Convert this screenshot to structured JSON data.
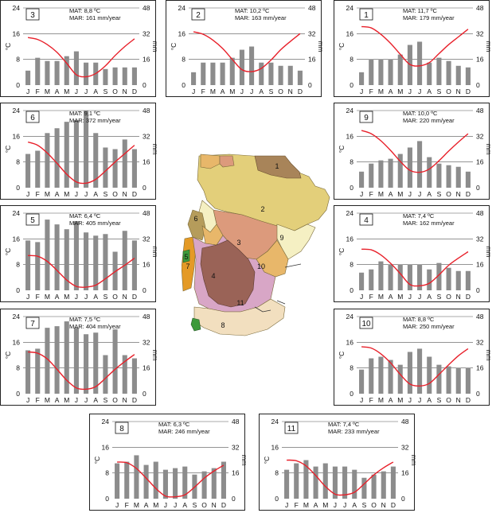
{
  "units": {
    "temp_axis": "°C",
    "precip_axis": "mm"
  },
  "month_labels": [
    "J",
    "F",
    "M",
    "A",
    "M",
    "J",
    "J",
    "A",
    "S",
    "O",
    "N",
    "D"
  ],
  "axes": {
    "temp_ticks": [
      "0",
      "8",
      "16",
      "24"
    ],
    "precip_ticks": [
      "0",
      "16",
      "32",
      "48"
    ]
  },
  "colors": {
    "bar": "#8c8c8c",
    "line": "#e8202a",
    "grid": "#000000",
    "stream": "#3a3a3a"
  },
  "chart_data": [
    {
      "type": "bar+line",
      "id": "3",
      "mat": "MAT: 8,8 ºC",
      "mar": "MAR: 161 mm/year",
      "temp_c": [
        14.8,
        14.2,
        12.6,
        10.2,
        6.8,
        3.2,
        2.6,
        3.6,
        6.0,
        9.2,
        12.0,
        14.4
      ],
      "precip_mm": [
        9,
        17,
        15,
        15,
        18,
        21,
        14,
        14,
        10,
        11,
        11,
        11
      ],
      "temp_ylim": [
        0,
        24
      ],
      "precip_ylim": [
        0,
        48
      ]
    },
    {
      "type": "bar+line",
      "id": "2",
      "mat": "MAT: 10,2 ºC",
      "mar": "MAR: 163 mm/year",
      "temp_c": [
        16.6,
        15.8,
        14.0,
        11.4,
        8.0,
        4.8,
        4.2,
        5.2,
        7.8,
        11.0,
        13.6,
        16.0
      ],
      "precip_mm": [
        8,
        14,
        14,
        14,
        17,
        22,
        24,
        14,
        14,
        12,
        12,
        9
      ],
      "temp_ylim": [
        0,
        24
      ],
      "precip_ylim": [
        0,
        48
      ]
    },
    {
      "type": "bar+line",
      "id": "1",
      "mat": "MAT: 11,7 ºC",
      "mar": "MAR: 179 mm/year",
      "temp_c": [
        18.2,
        17.8,
        15.8,
        13.0,
        9.6,
        6.4,
        6.0,
        7.0,
        9.8,
        12.6,
        15.0,
        17.4
      ],
      "precip_mm": [
        8,
        16,
        16,
        16,
        19,
        25,
        27,
        14,
        17,
        15,
        12,
        11
      ],
      "temp_ylim": [
        0,
        24
      ],
      "precip_ylim": [
        0,
        48
      ]
    },
    {
      "type": "bar+line",
      "id": "6",
      "mat": "MAT: 9,1 ºC",
      "mar": "MAR: 372 mm/year",
      "temp_c": [
        14.2,
        13.2,
        10.8,
        7.6,
        4.2,
        1.8,
        1.4,
        2.6,
        5.2,
        8.0,
        10.6,
        13.2
      ],
      "precip_mm": [
        21,
        23,
        34,
        37,
        41,
        42,
        48,
        34,
        25,
        24,
        30,
        24
      ],
      "temp_ylim": [
        0,
        24
      ],
      "precip_ylim": [
        0,
        48
      ]
    },
    {
      "type": "bar+line",
      "id": "9",
      "mat": "MAT: 10,0 ºC",
      "mar": "MAR: 220 mm/year",
      "temp_c": [
        17.8,
        16.8,
        14.6,
        11.6,
        8.2,
        5.4,
        4.8,
        5.8,
        8.4,
        11.4,
        14.2,
        16.8
      ],
      "precip_mm": [
        10,
        15,
        17,
        18,
        21,
        25,
        29,
        19,
        15,
        14,
        13,
        10
      ],
      "temp_ylim": [
        0,
        24
      ],
      "precip_ylim": [
        0,
        48
      ]
    },
    {
      "type": "bar+line",
      "id": "5",
      "mat": "MAT: 6,4 ºC",
      "mar": "MAR: 405 mm/year",
      "temp_c": [
        10.8,
        10.6,
        9.0,
        6.2,
        3.2,
        1.2,
        1.0,
        1.6,
        3.6,
        5.8,
        7.8,
        10.0
      ],
      "precip_mm": [
        31,
        30,
        44,
        41,
        38,
        43,
        36,
        34,
        35,
        24,
        37,
        31
      ],
      "temp_ylim": [
        0,
        24
      ],
      "precip_ylim": [
        0,
        48
      ]
    },
    {
      "type": "bar+line",
      "id": "4",
      "mat": "MAT: 7,4 ºC",
      "mar": "MAR: 162 mm/year",
      "temp_c": [
        12.8,
        12.6,
        11.0,
        8.4,
        5.2,
        1.8,
        1.4,
        2.2,
        4.8,
        7.8,
        10.0,
        12.0
      ],
      "precip_mm": [
        11,
        13,
        18,
        16,
        16,
        16,
        16,
        13,
        17,
        14,
        12,
        12
      ],
      "temp_ylim": [
        0,
        24
      ],
      "precip_ylim": [
        0,
        48
      ]
    },
    {
      "type": "bar+line",
      "id": "7",
      "mat": "MAT: 7,5 ºC",
      "mar": "MAR: 404 mm/year",
      "temp_c": [
        13.0,
        12.6,
        10.8,
        7.6,
        4.2,
        1.8,
        1.4,
        2.2,
        4.8,
        7.6,
        10.0,
        12.2
      ],
      "precip_mm": [
        27,
        28,
        41,
        42,
        45,
        41,
        37,
        38,
        24,
        40,
        24,
        22
      ],
      "temp_ylim": [
        0,
        24
      ],
      "precip_ylim": [
        0,
        48
      ]
    },
    {
      "type": "bar+line",
      "id": "10",
      "mat": "MAT: 8,8 ºC",
      "mar": "MAR: 250 mm/year",
      "temp_c": [
        14.6,
        14.2,
        12.4,
        9.6,
        6.0,
        3.0,
        2.4,
        3.2,
        6.0,
        9.0,
        11.8,
        14.0
      ],
      "precip_mm": [
        15,
        22,
        23,
        21,
        18,
        26,
        28,
        23,
        18,
        17,
        16,
        16
      ],
      "temp_ylim": [
        0,
        24
      ],
      "precip_ylim": [
        0,
        48
      ]
    },
    {
      "type": "bar+line",
      "id": "8",
      "mat": "MAT: 6,3 ºC",
      "mar": "MAR: 246 mm/year",
      "temp_c": [
        11.4,
        11.2,
        9.4,
        6.4,
        3.2,
        0.8,
        0.6,
        1.2,
        3.6,
        6.4,
        8.6,
        10.4
      ],
      "precip_mm": [
        22,
        23,
        27,
        21,
        23,
        18,
        19,
        20,
        15,
        17,
        19,
        23
      ],
      "temp_ylim": [
        0,
        24
      ],
      "precip_ylim": [
        0,
        48
      ]
    },
    {
      "type": "bar+line",
      "id": "11",
      "mat": "MAT: 7,4 ºC",
      "mar": "MAR: 233 mm/year",
      "temp_c": [
        12.0,
        11.8,
        10.2,
        7.2,
        3.8,
        1.4,
        1.2,
        2.0,
        4.6,
        7.4,
        9.6,
        11.4
      ],
      "precip_mm": [
        18,
        22,
        24,
        20,
        22,
        20,
        20,
        18,
        13,
        15,
        17,
        20
      ],
      "temp_ylim": [
        0,
        24
      ],
      "precip_ylim": [
        0,
        48
      ]
    }
  ],
  "map": {
    "region_labels": [
      "1",
      "2",
      "3",
      "4",
      "5",
      "6",
      "7",
      "8",
      "9",
      "10",
      "11"
    ],
    "colors": {
      "r1": "#a88459",
      "r2": "#e3cf7a",
      "r3": "#dc9a7c",
      "r4": "#9a6357",
      "r5": "#3d9a3a",
      "r6": "#b59c5b",
      "r7": "#e49a26",
      "r8": "#f2dfbf",
      "r9": "#f5f0c3",
      "r10": "#e8b76a",
      "r11": "#d8a6c6"
    }
  }
}
